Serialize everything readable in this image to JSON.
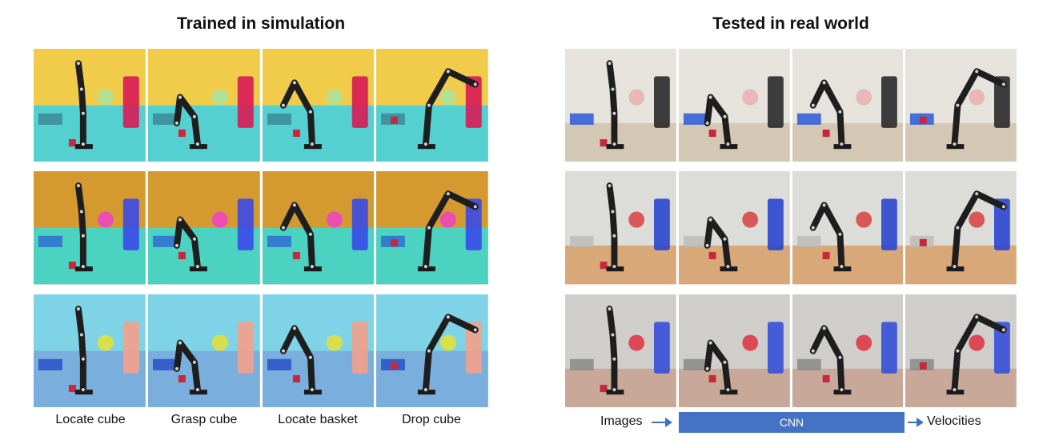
{
  "left_panel": {
    "title": "Trained in simulation"
  },
  "right_panel": {
    "title": "Tested in real world"
  },
  "captions": [
    "Locate cube",
    "Grasp cube",
    "Locate basket",
    "Drop cube"
  ],
  "pipeline": {
    "input_label": "Images",
    "model_label": "CNN",
    "output_label": "Velocities",
    "accent": "#4472c4"
  },
  "sim_scenes": [
    {
      "bg": "#f0cc4a",
      "floor": "#54d0d0",
      "props": [
        "#d81a55",
        "#a9e3a0",
        "#3d8a98"
      ]
    },
    {
      "bg": "#d49a30",
      "floor": "#4cd2c0",
      "props": [
        "#3a4ae8",
        "#f040c8",
        "#2f6fd0"
      ]
    },
    {
      "bg": "#7ed4e6",
      "floor": "#7aaedc",
      "props": [
        "#f4a08a",
        "#e8e030",
        "#2a50c8"
      ]
    }
  ],
  "real_scenes": [
    {
      "bg": "#e6e2dc",
      "floor": "#d4c8b4",
      "props": [
        "#2a2a2a",
        "#e8b0b0",
        "#2a58d8"
      ]
    },
    {
      "bg": "#dcdcd8",
      "floor": "#d8a878",
      "props": [
        "#2a46d0",
        "#d84040",
        "#bcbcb8"
      ]
    },
    {
      "bg": "#d0cecb",
      "floor": "#c8a898",
      "props": [
        "#3450d8",
        "#e03040",
        "#8a8a88"
      ]
    }
  ]
}
